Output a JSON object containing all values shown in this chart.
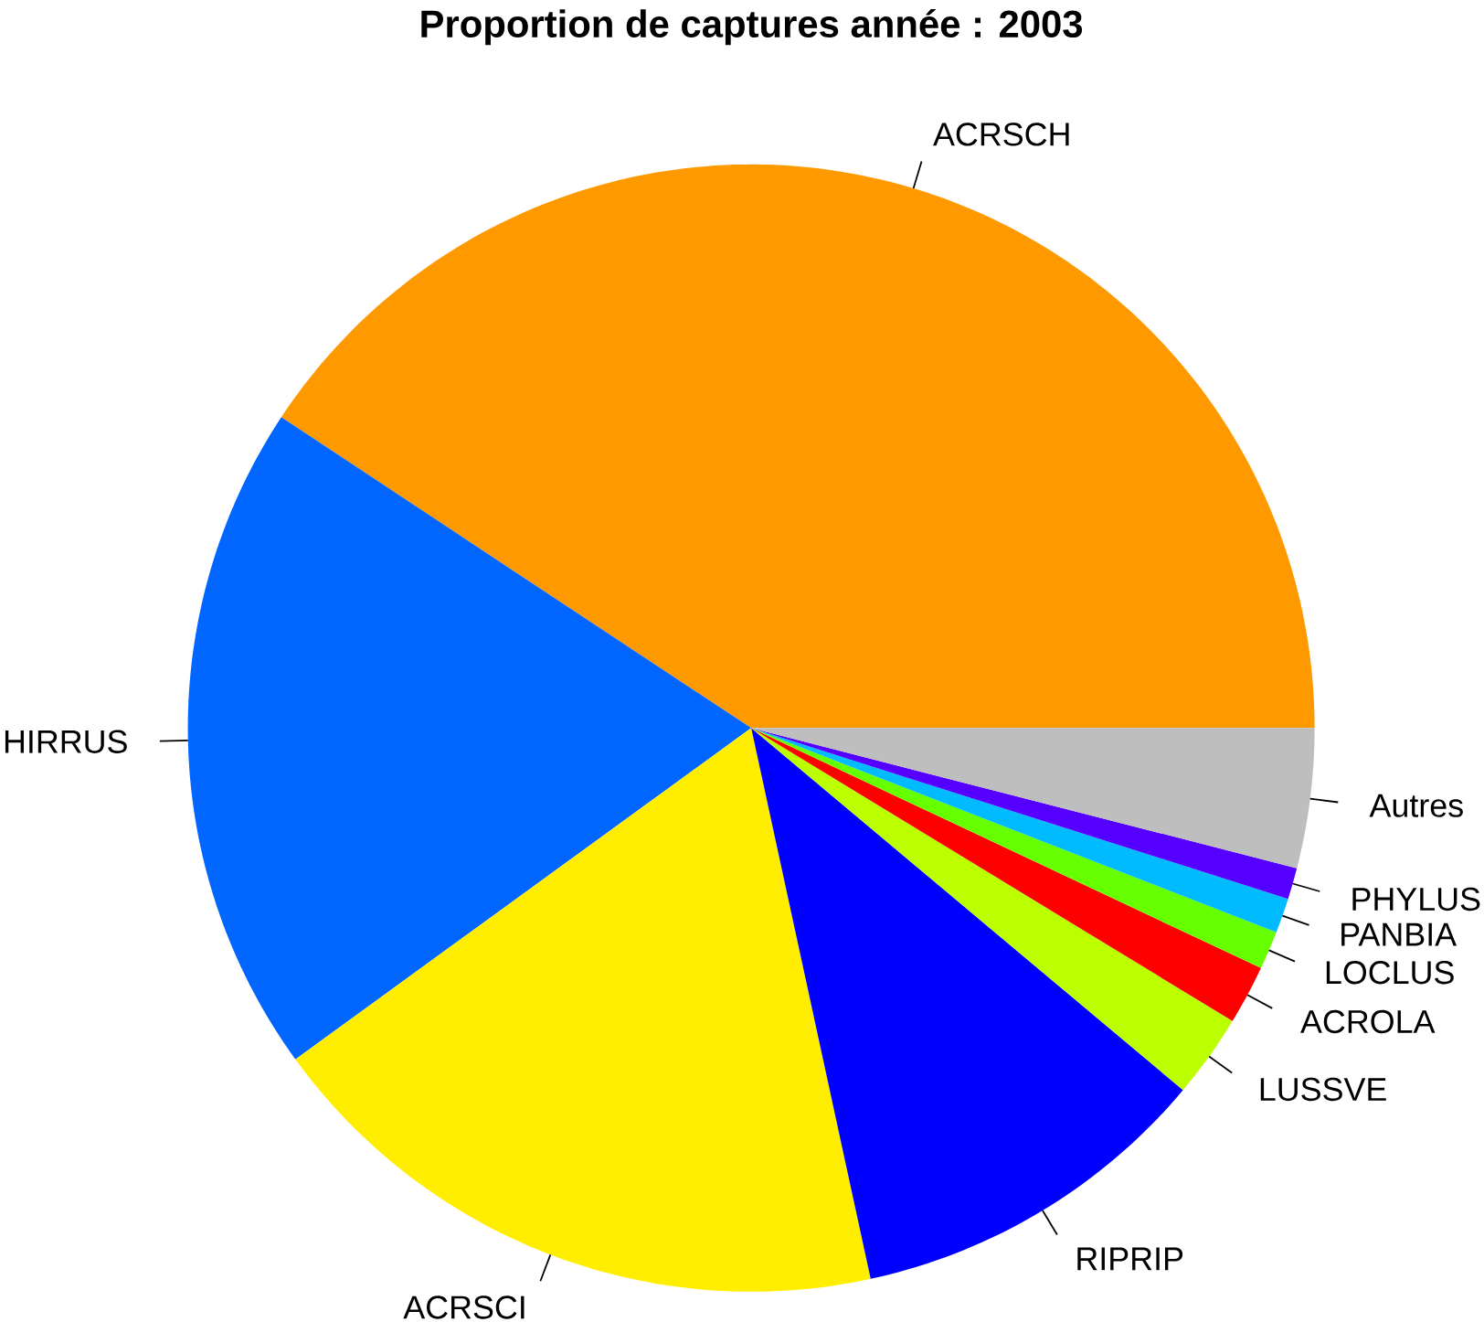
{
  "chart_data": {
    "type": "pie",
    "title": "Proportion de captures année : 2003",
    "categories": [
      "ACRSCH",
      "HIRRUS",
      "ACRSCI",
      "RIPRIP",
      "LUSSVE",
      "ACROLA",
      "LOCLUS",
      "PANBIA",
      "PHYLUS",
      "Autres"
    ],
    "values": [
      40.7,
      19.3,
      18.4,
      10.5,
      2.4,
      1.7,
      1.1,
      1.0,
      0.9,
      4.0
    ],
    "colors": [
      "#ff9900",
      "#0066ff",
      "#ffee00",
      "#0000ff",
      "#bbff00",
      "#ff0000",
      "#66ff00",
      "#00bbff",
      "#5500ff",
      "#bebebe"
    ]
  }
}
